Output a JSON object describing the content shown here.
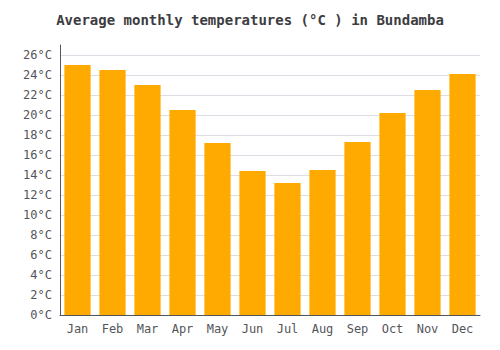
{
  "chart_data": {
    "type": "bar",
    "title": "Average monthly temperatures (°C ) in Bundamba",
    "categories": [
      "Jan",
      "Feb",
      "Mar",
      "Apr",
      "May",
      "Jun",
      "Jul",
      "Aug",
      "Sep",
      "Oct",
      "Nov",
      "Dec"
    ],
    "values": [
      25.0,
      24.5,
      23.0,
      20.5,
      17.2,
      14.4,
      13.2,
      14.5,
      17.3,
      20.2,
      22.5,
      24.1
    ],
    "color": "#FFAA00",
    "ylim": [
      0,
      27
    ],
    "yticks": [
      {
        "value": 0,
        "label": "0°C"
      },
      {
        "value": 2,
        "label": "2°C"
      },
      {
        "value": 4,
        "label": "4°C"
      },
      {
        "value": 6,
        "label": "6°C"
      },
      {
        "value": 8,
        "label": "8°C"
      },
      {
        "value": 10,
        "label": "10°C"
      },
      {
        "value": 12,
        "label": "12°C"
      },
      {
        "value": 14,
        "label": "14°C"
      },
      {
        "value": 16,
        "label": "16°C"
      },
      {
        "value": 18,
        "label": "18°C"
      },
      {
        "value": 20,
        "label": "20°C"
      },
      {
        "value": 22,
        "label": "22°C"
      },
      {
        "value": 24,
        "label": "24°C"
      },
      {
        "value": 26,
        "label": "26°C"
      }
    ],
    "grid": true
  }
}
